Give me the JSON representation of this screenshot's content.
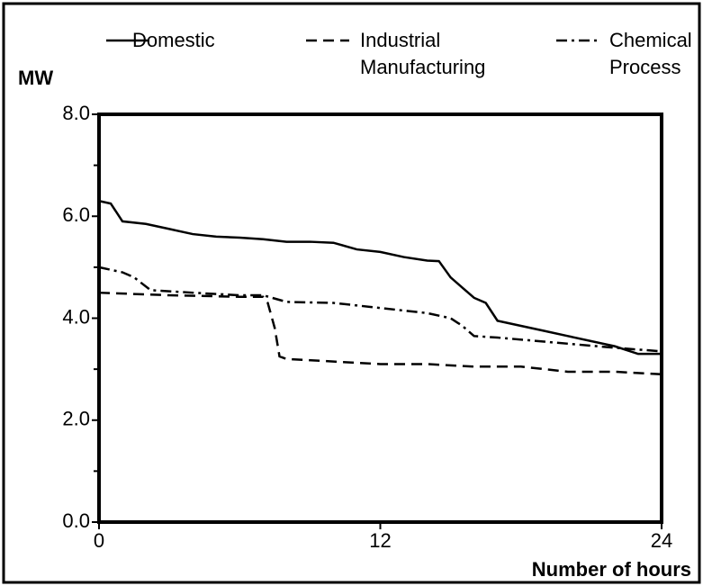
{
  "chart_data": {
    "type": "line",
    "ylabel": "MW",
    "xlabel": "Number of hours",
    "xlim": [
      0,
      24
    ],
    "xticks": [
      0,
      12,
      24
    ],
    "ylim": [
      0,
      8
    ],
    "yticks": [
      {
        "value": 0,
        "label": "0.0"
      },
      {
        "value": 2,
        "label": "2.0"
      },
      {
        "value": 4,
        "label": "4.0"
      },
      {
        "value": 6,
        "label": "6.0"
      },
      {
        "value": 8,
        "label": "8.0"
      }
    ],
    "yminorticks": [
      1,
      3,
      5,
      7
    ],
    "grid": false,
    "series": [
      {
        "name": "Domestic",
        "color": "#000000",
        "dash": "solid",
        "x": [
          0,
          0.5,
          1,
          2,
          3,
          4,
          5,
          6,
          7,
          8,
          9,
          10,
          11,
          12,
          13,
          14,
          14.5,
          15,
          15.5,
          16,
          16.5,
          17,
          18,
          19,
          20,
          21,
          22,
          23,
          24
        ],
        "values": [
          6.3,
          6.25,
          5.9,
          5.85,
          5.75,
          5.65,
          5.6,
          5.58,
          5.55,
          5.5,
          5.5,
          5.48,
          5.35,
          5.3,
          5.2,
          5.13,
          5.12,
          4.8,
          4.6,
          4.4,
          4.3,
          3.95,
          3.85,
          3.75,
          3.65,
          3.55,
          3.45,
          3.3,
          3.3
        ]
      },
      {
        "name": "Industrial Manufacturing",
        "color": "#000000",
        "dash": "dashed",
        "x": [
          0,
          3,
          6,
          7,
          7.2,
          7.5,
          7.7,
          8,
          10,
          12,
          14,
          16,
          18,
          20,
          22,
          24
        ],
        "values": [
          4.5,
          4.45,
          4.42,
          4.42,
          4.3,
          3.8,
          3.25,
          3.2,
          3.15,
          3.1,
          3.1,
          3.05,
          3.05,
          2.95,
          2.95,
          2.9
        ]
      },
      {
        "name": "Chemical Process",
        "color": "#000000",
        "dash": "dashdot",
        "x": [
          0,
          1,
          1.5,
          2.2,
          4,
          6,
          7,
          8,
          10,
          12,
          14,
          15,
          15.5,
          16,
          17,
          20,
          22,
          24
        ],
        "values": [
          5.0,
          4.9,
          4.8,
          4.55,
          4.5,
          4.45,
          4.45,
          4.32,
          4.3,
          4.2,
          4.1,
          4.0,
          3.85,
          3.65,
          3.62,
          3.5,
          3.42,
          3.35
        ]
      }
    ]
  }
}
